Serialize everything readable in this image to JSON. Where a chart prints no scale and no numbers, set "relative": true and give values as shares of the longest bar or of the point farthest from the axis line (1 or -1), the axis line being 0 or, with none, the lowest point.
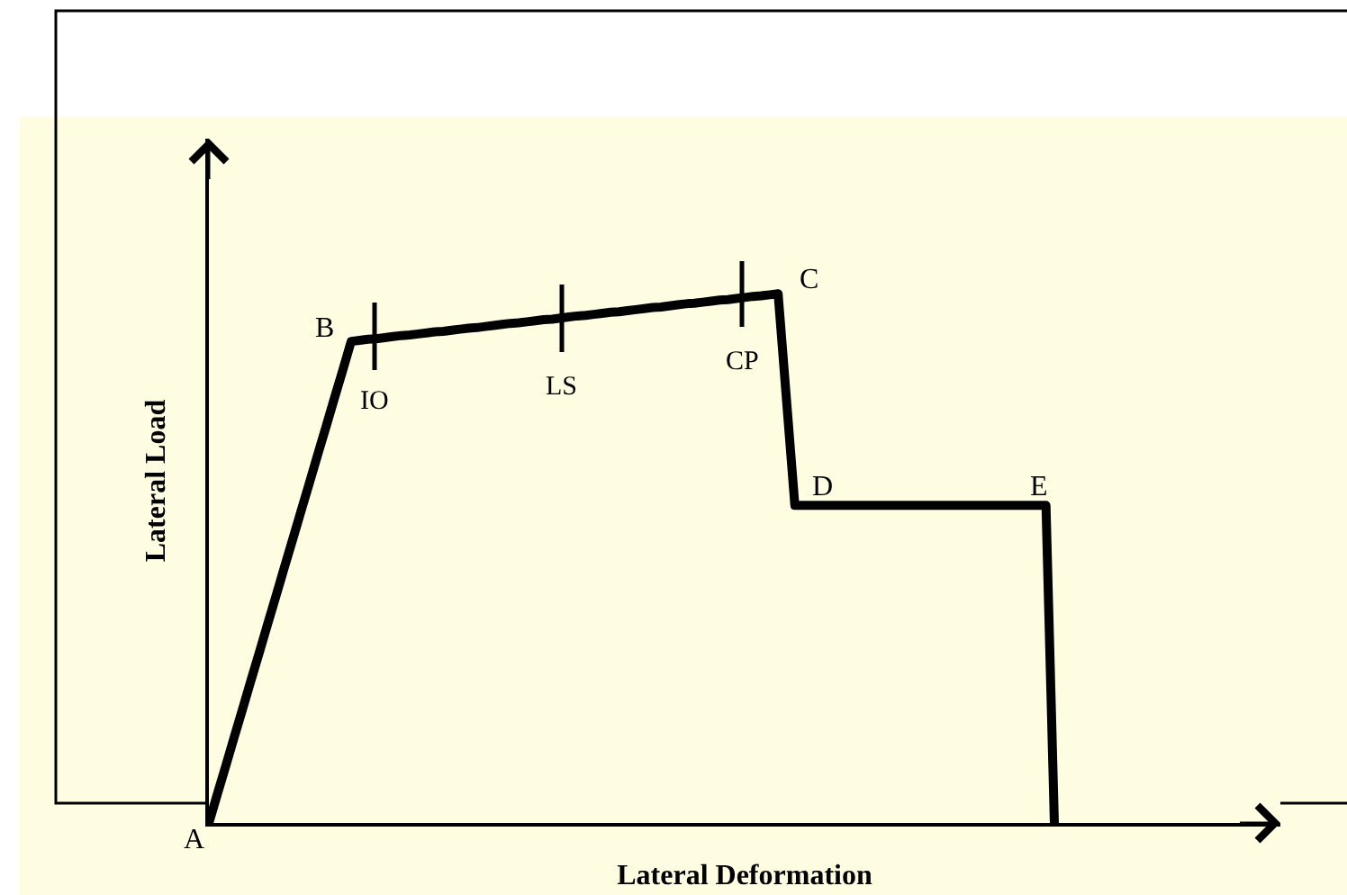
{
  "chart_data": {
    "type": "line",
    "relative": true,
    "xlabel": "Lateral Deformation",
    "ylabel": "Lateral Load",
    "categories": [
      null,
      null,
      null,
      null,
      null,
      null,
      null,
      null,
      null,
      null,
      null,
      null,
      null,
      null,
      null,
      null,
      null,
      null,
      null,
      null,
      null,
      null,
      null,
      null,
      null,
      null,
      null,
      null,
      null,
      null,
      null,
      null,
      null,
      null,
      null,
      null,
      null,
      null,
      null,
      null,
      null,
      null,
      null,
      null,
      null,
      null,
      null,
      null,
      null,
      null,
      null,
      null,
      null,
      null,
      null,
      null,
      null,
      null,
      null,
      null,
      null,
      null,
      null,
      null,
      null,
      null,
      null,
      null,
      null,
      null,
      null,
      null,
      null,
      null,
      null,
      null,
      null,
      null,
      null,
      null,
      null,
      null,
      null,
      null,
      null,
      null,
      null,
      null,
      null,
      null,
      null,
      null,
      null,
      null,
      null,
      null,
      null,
      null,
      null,
      null,
      null,
      null
    ],
    "series": [
      {
        "color": "#000000",
        "values": [
          0,
          0.054,
          0.107,
          0.161,
          0.214,
          0.268,
          0.321,
          0.375,
          0.428,
          0.482,
          0.535,
          0.589,
          0.642,
          0.696,
          0.749,
          0.803,
          0.856,
          0.91,
          0.912,
          0.914,
          0.915,
          0.917,
          0.919,
          0.921,
          0.922,
          0.924,
          0.926,
          0.928,
          0.929,
          0.931,
          0.933,
          0.935,
          0.936,
          0.938,
          0.94,
          0.942,
          0.944,
          0.945,
          0.947,
          0.949,
          0.951,
          0.952,
          0.954,
          0.956,
          0.958,
          0.959,
          0.961,
          0.963,
          0.965,
          0.966,
          0.968,
          0.97,
          0.972,
          0.974,
          0.975,
          0.977,
          0.979,
          0.981,
          0.982,
          0.984,
          0.986,
          0.988,
          0.989,
          0.991,
          0.993,
          0.995,
          0.996,
          0.998,
          1,
          0.8,
          0.6,
          0.6,
          0.6,
          0.6,
          0.6,
          0.6,
          0.6,
          0.6,
          0.6,
          0.6,
          0.6,
          0.6,
          0.6,
          0.6,
          0.6,
          0.6,
          0.6,
          0.6,
          0.6,
          0.6,
          0.6,
          0.6,
          0.6,
          0.6,
          0.6,
          0.6,
          0.6,
          0.6,
          0.6,
          0.6,
          0.6,
          0
        ]
      }
    ],
    "marker": "none",
    "line_style": "solid",
    "annotations": [
      "A",
      "B",
      "C",
      "D",
      "E",
      "IO",
      "LS",
      "CP"
    ]
  }
}
